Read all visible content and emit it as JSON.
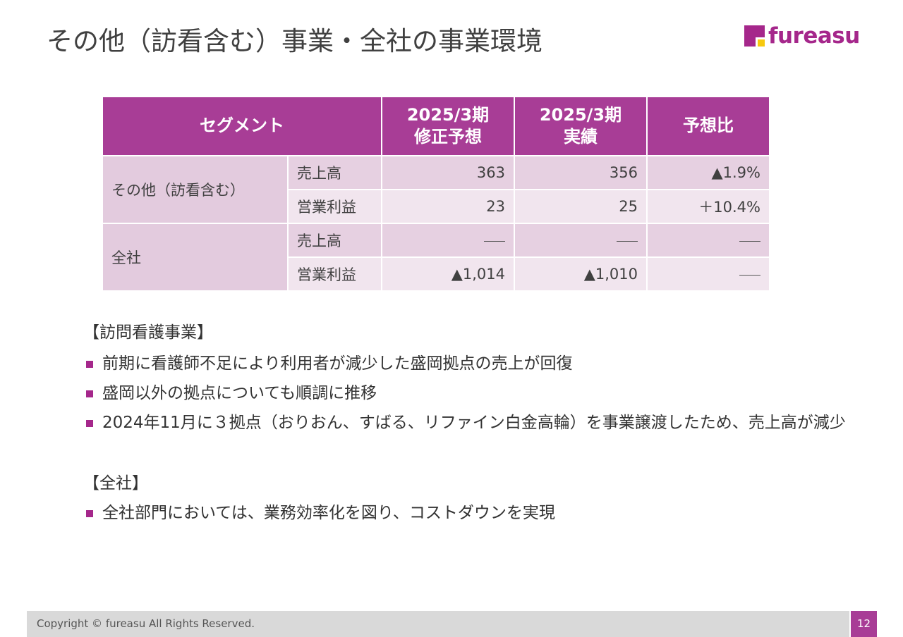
{
  "title": "その他（訪看含む）事業・全社の事業環境",
  "logo": {
    "text": "fureasu"
  },
  "table": {
    "headers": {
      "segment": "セグメント",
      "forecast_line1": "2025/3期",
      "forecast_line2": "修正予想",
      "actual_line1": "2025/3期",
      "actual_line2": "実績",
      "ratio": "予想比"
    },
    "groups": [
      {
        "name": "その他（訪看含む）",
        "rows": [
          {
            "item": "売上高",
            "forecast": "363",
            "actual": "356",
            "ratio": "▲1.9%"
          },
          {
            "item": "営業利益",
            "forecast": "23",
            "actual": "25",
            "ratio": "＋10.4%"
          }
        ]
      },
      {
        "name": "全社",
        "rows": [
          {
            "item": "売上高",
            "forecast": "—",
            "actual": "—",
            "ratio": "—"
          },
          {
            "item": "営業利益",
            "forecast": "▲1,014",
            "actual": "▲1,010",
            "ratio": "—"
          }
        ]
      }
    ]
  },
  "notes": {
    "section1": {
      "heading": "【訪問看護事業】",
      "bullets": [
        "前期に看護師不足により利用者が減少した盛岡拠点の売上が回復",
        "盛岡以外の拠点についても順調に推移",
        "2024年11月に３拠点（おりおん、すばる、リファイン白金高輪）を事業譲渡したため、売上高が減少"
      ]
    },
    "section2": {
      "heading": "【全社】",
      "bullets": [
        "全社部門においては、業務効率化を図り、コストダウンを実現"
      ]
    }
  },
  "footer": {
    "copyright": "Copyright © fureasu All Rights Reserved.",
    "page_number": "12"
  },
  "colors": {
    "accent": "#a5278b",
    "header_bg": "#a83d96",
    "row_dark": "#e6d0e1",
    "row_light": "#f1e5ee",
    "logo_yellow": "#f7c90f"
  }
}
